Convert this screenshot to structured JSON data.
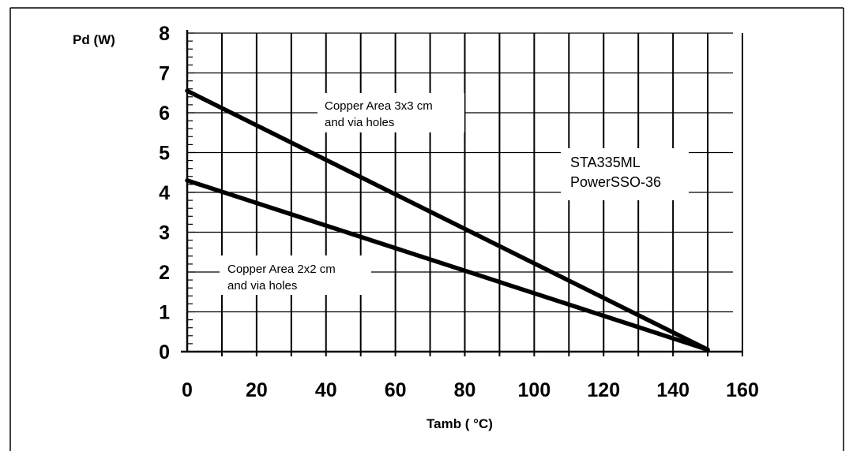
{
  "chart_data": {
    "type": "line",
    "xlabel": "Tamb ( °C)",
    "ylabel": "Pd (W)",
    "xlim": [
      0,
      160
    ],
    "ylim": [
      0,
      8
    ],
    "x_ticks": [
      "0",
      "20",
      "40",
      "60",
      "80",
      "100",
      "120",
      "140",
      "160"
    ],
    "y_ticks": [
      "0",
      "1",
      "2",
      "3",
      "4",
      "5",
      "6",
      "7",
      "8"
    ],
    "grid": true,
    "series": [
      {
        "points": [
          [
            0,
            6.55
          ],
          [
            150,
            0.05
          ]
        ],
        "color": "#000000"
      },
      {
        "points": [
          [
            0,
            4.3
          ],
          [
            150,
            0.05
          ]
        ],
        "color": "#000000"
      }
    ],
    "annotations": {
      "upper_line_1": "Copper Area 3x3 cm",
      "upper_line_2": "and via holes",
      "lower_line_1": "Copper Area 2x2 cm",
      "lower_line_2": "and via holes",
      "device_1": "STA335ML",
      "device_2": "PowerSSO-36"
    }
  }
}
